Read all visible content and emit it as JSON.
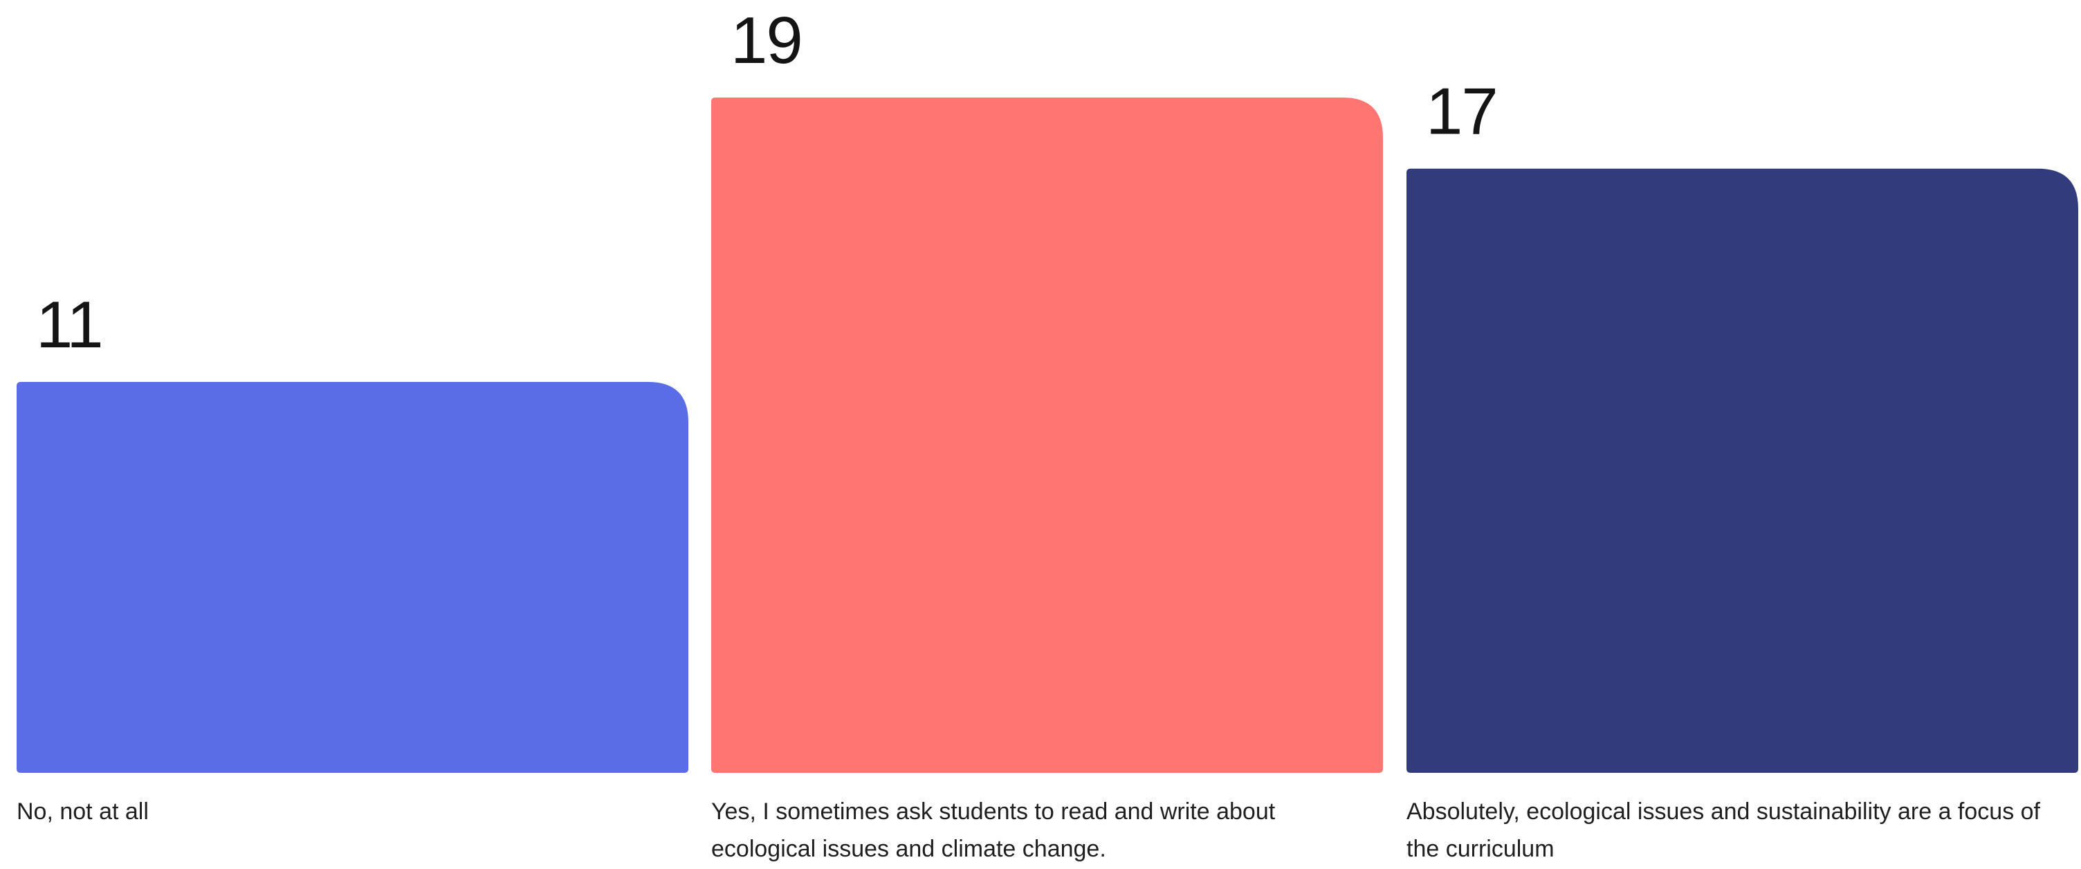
{
  "chart_data": {
    "type": "bar",
    "categories": [
      "No, not at all",
      "Yes, I sometimes ask students to read and write about ecological issues and climate change.",
      "Absolutely, ecological issues and sustainability are a focus of the curriculum"
    ],
    "values": [
      11,
      19,
      17
    ],
    "colors": [
      "#5a6ce6",
      "#ff7572",
      "#323b7c"
    ],
    "ylim": [
      0,
      19
    ],
    "grid": false,
    "legend": "none"
  }
}
